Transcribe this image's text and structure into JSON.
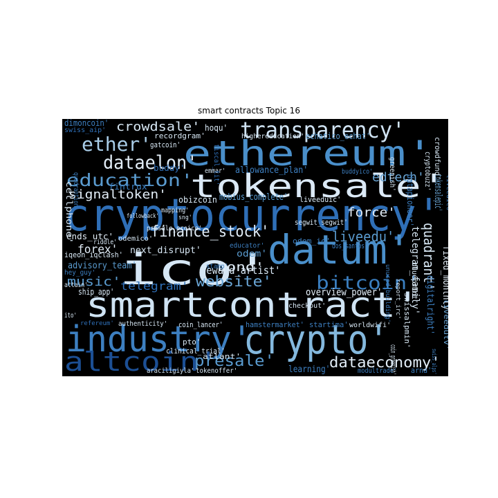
{
  "title": "smart contracts Topic 16",
  "cloud": {
    "background": "#000000",
    "words": [
      {
        "text": "cryptocurrency'",
        "color": "#2f6fb7"
      },
      {
        "text": "smartcontract'",
        "color": "#cfe3f3"
      },
      {
        "text": "ethereum'",
        "color": "#4a8fca"
      },
      {
        "text": "datum'",
        "color": "#4a8fca"
      },
      {
        "text": "ico'",
        "color": "#d6e7f5"
      },
      {
        "text": "crypto'",
        "color": "#84b8dd"
      },
      {
        "text": "industry'",
        "color": "#3d7fc0"
      },
      {
        "text": "tokensale'",
        "color": "#dbe9f6"
      },
      {
        "text": "altcoin'",
        "color": "#1c4f94"
      },
      {
        "text": "transparency'",
        "color": "#d0e3f3"
      },
      {
        "text": "bitcoin'",
        "color": "#3a7ebf"
      },
      {
        "text": "finance_stock'",
        "color": "#e1edf8"
      },
      {
        "text": "education'",
        "color": "#5a9bcf"
      },
      {
        "text": "ether'",
        "color": "#a9cde8"
      },
      {
        "text": "dataelon'",
        "color": "#e3eef8"
      },
      {
        "text": "crowdsale'",
        "color": "#d8e8f5"
      },
      {
        "text": "presale'",
        "color": "#5a9bcf"
      },
      {
        "text": "dataeconomy'",
        "color": "#e3eef8"
      },
      {
        "text": "website'",
        "color": "#6aa6d6"
      },
      {
        "text": "music'",
        "color": "#5a9bcf"
      },
      {
        "text": "telegram'",
        "color": "#2f6fb7"
      },
      {
        "text": "signaltoken'",
        "color": "#e3eef8"
      },
      {
        "text": "force'",
        "color": "#e3eef8"
      },
      {
        "text": "edtech'",
        "color": "#6aa6d6"
      },
      {
        "text": "tokensalepic'",
        "color": "#6aa6d6"
      },
      {
        "text": "quadrant'",
        "color": "#d8e8f5"
      },
      {
        "text": "liveedu'",
        "color": "#5a9bcf"
      },
      {
        "text": "bond'",
        "color": "#e3eef8"
      },
      {
        "text": "forex'",
        "color": "#e3eef8"
      },
      {
        "text": "reward_artist'",
        "color": "#d8e8f5"
      },
      {
        "text": "overview_power'",
        "color": "#e3eef8"
      },
      {
        "text": "telegram_family'",
        "color": "#d8e8f5"
      },
      {
        "text": "fixed_monthly'",
        "color": "#e3eef8"
      },
      {
        "text": "digitalright'",
        "color": "#3d7fc0"
      },
      {
        "text": "liveedutv'",
        "color": "#6aa6d6"
      },
      {
        "text": "next_disrupt'",
        "color": "#d8e8f5"
      },
      {
        "text": "advisory_team'",
        "color": "#5a9bcf"
      },
      {
        "text": "ends_utc'",
        "color": "#e3eef8"
      },
      {
        "text": "ship_app'",
        "color": "#d8e8f5"
      },
      {
        "text": "cellphone'",
        "color": "#d8e8f5"
      },
      {
        "text": "fintrux'",
        "color": "#3d7fc0"
      },
      {
        "text": "hoqu'",
        "color": "#d8e8f5"
      },
      {
        "text": "recordgram'",
        "color": "#d8e8f5"
      },
      {
        "text": "gatcoin'",
        "color": "#d8e8f5"
      },
      {
        "text": "buddy'",
        "color": "#2f6fb7"
      },
      {
        "text": "emmar'",
        "color": "#d8e8f5"
      },
      {
        "text": "allowance_plan'",
        "color": "#3d7fc0"
      },
      {
        "text": "highereducation'",
        "color": "#d8e8f5"
      },
      {
        "text": "echatico_echat'",
        "color": "#5a9bcf"
      },
      {
        "text": "greenish'",
        "color": "#d8e8f5"
      },
      {
        "text": "datapioneer'",
        "color": "#3d7fc0"
      },
      {
        "text": "crowdfund'",
        "color": "#d8e8f5"
      },
      {
        "text": "cryptobuzz'",
        "color": "#d8e8f5"
      },
      {
        "text": "liveedico'",
        "color": "#3d7fc0"
      },
      {
        "text": "buddyico'",
        "color": "#3d7fc0"
      },
      {
        "text": "obizcoin",
        "color": "#d8e8f5"
      },
      {
        "text": "mobius_complete'",
        "color": "#5a9bcf"
      },
      {
        "text": "liveeduic'",
        "color": "#d8e8f5"
      },
      {
        "text": "presale_preico'",
        "color": "#d8e8f5"
      },
      {
        "text": "segwit_segwit'",
        "color": "#d8e8f5"
      },
      {
        "text": "odemico'",
        "color": "#d8e8f5"
      },
      {
        "text": "educator'",
        "color": "#3d7fc0"
      },
      {
        "text": "odem_io'",
        "color": "#3d7fc0"
      },
      {
        "text": "dos_santos'",
        "color": "#3d7fc0"
      },
      {
        "text": "odem'",
        "color": "#5a9bcf"
      },
      {
        "text": "stamp'",
        "color": "#3d7fc0"
      },
      {
        "text": "riddle'",
        "color": "#d8e8f5"
      },
      {
        "text": "iqeon_iqclash'",
        "color": "#d8e8f5"
      },
      {
        "text": "hey_guy'",
        "color": "#3d7fc0"
      },
      {
        "text": "dimoncoin'",
        "color": "#3d7fc0"
      },
      {
        "text": "swiss_aip'",
        "color": "#2f6fb7"
      },
      {
        "text": "quadrantion",
        "color": "#3d7fc0"
      },
      {
        "text": "mapping'",
        "color": "#d8e8f5"
      },
      {
        "text": "sng'",
        "color": "#d8e8f5"
      },
      {
        "text": "attain'",
        "color": "#d8e8f5"
      },
      {
        "text": "ito'",
        "color": "#d8e8f5"
      },
      {
        "text": "refereum'",
        "color": "#2f6fb7"
      },
      {
        "text": "authenticity'",
        "color": "#d8e8f5"
      },
      {
        "text": "coin_lancer'",
        "color": "#d8e8f5"
      },
      {
        "text": "hamstermarket'",
        "color": "#3d7fc0"
      },
      {
        "text": "startima'",
        "color": "#3d7fc0"
      },
      {
        "text": "worldwifi'",
        "color": "#d8e8f5"
      },
      {
        "text": "coin_greenish'",
        "color": "#d8e8f5"
      },
      {
        "text": "swiss_alps'",
        "color": "#3d7fc0"
      },
      {
        "text": "swissalpmin'",
        "color": "#d8e8f5"
      },
      {
        "text": "blueprint'",
        "color": "#d8e8f5"
      },
      {
        "text": "report_irc'",
        "color": "#d8e8f5"
      },
      {
        "text": "unused_building'",
        "color": "#3d7fc0"
      },
      {
        "text": "checkout'",
        "color": "#d8e8f5"
      },
      {
        "text": "pto'",
        "color": "#d8e8f5"
      },
      {
        "text": "clinical_trial'",
        "color": "#d8e8f5"
      },
      {
        "text": "atlant'",
        "color": "#d8e8f5"
      },
      {
        "text": "araciligiyla'",
        "color": "#d8e8f5"
      },
      {
        "text": "tokenoffer'",
        "color": "#d8e8f5"
      },
      {
        "text": "learning'",
        "color": "#3d7fc0"
      },
      {
        "text": "modultrade'",
        "color": "#3d7fc0"
      },
      {
        "text": "arna'",
        "color": "#3d7fc0"
      },
      {
        "text": "followback'",
        "color": "#d8e8f5"
      },
      {
        "text": "fiscal_tit'",
        "color": "#2f6fb7"
      }
    ]
  }
}
